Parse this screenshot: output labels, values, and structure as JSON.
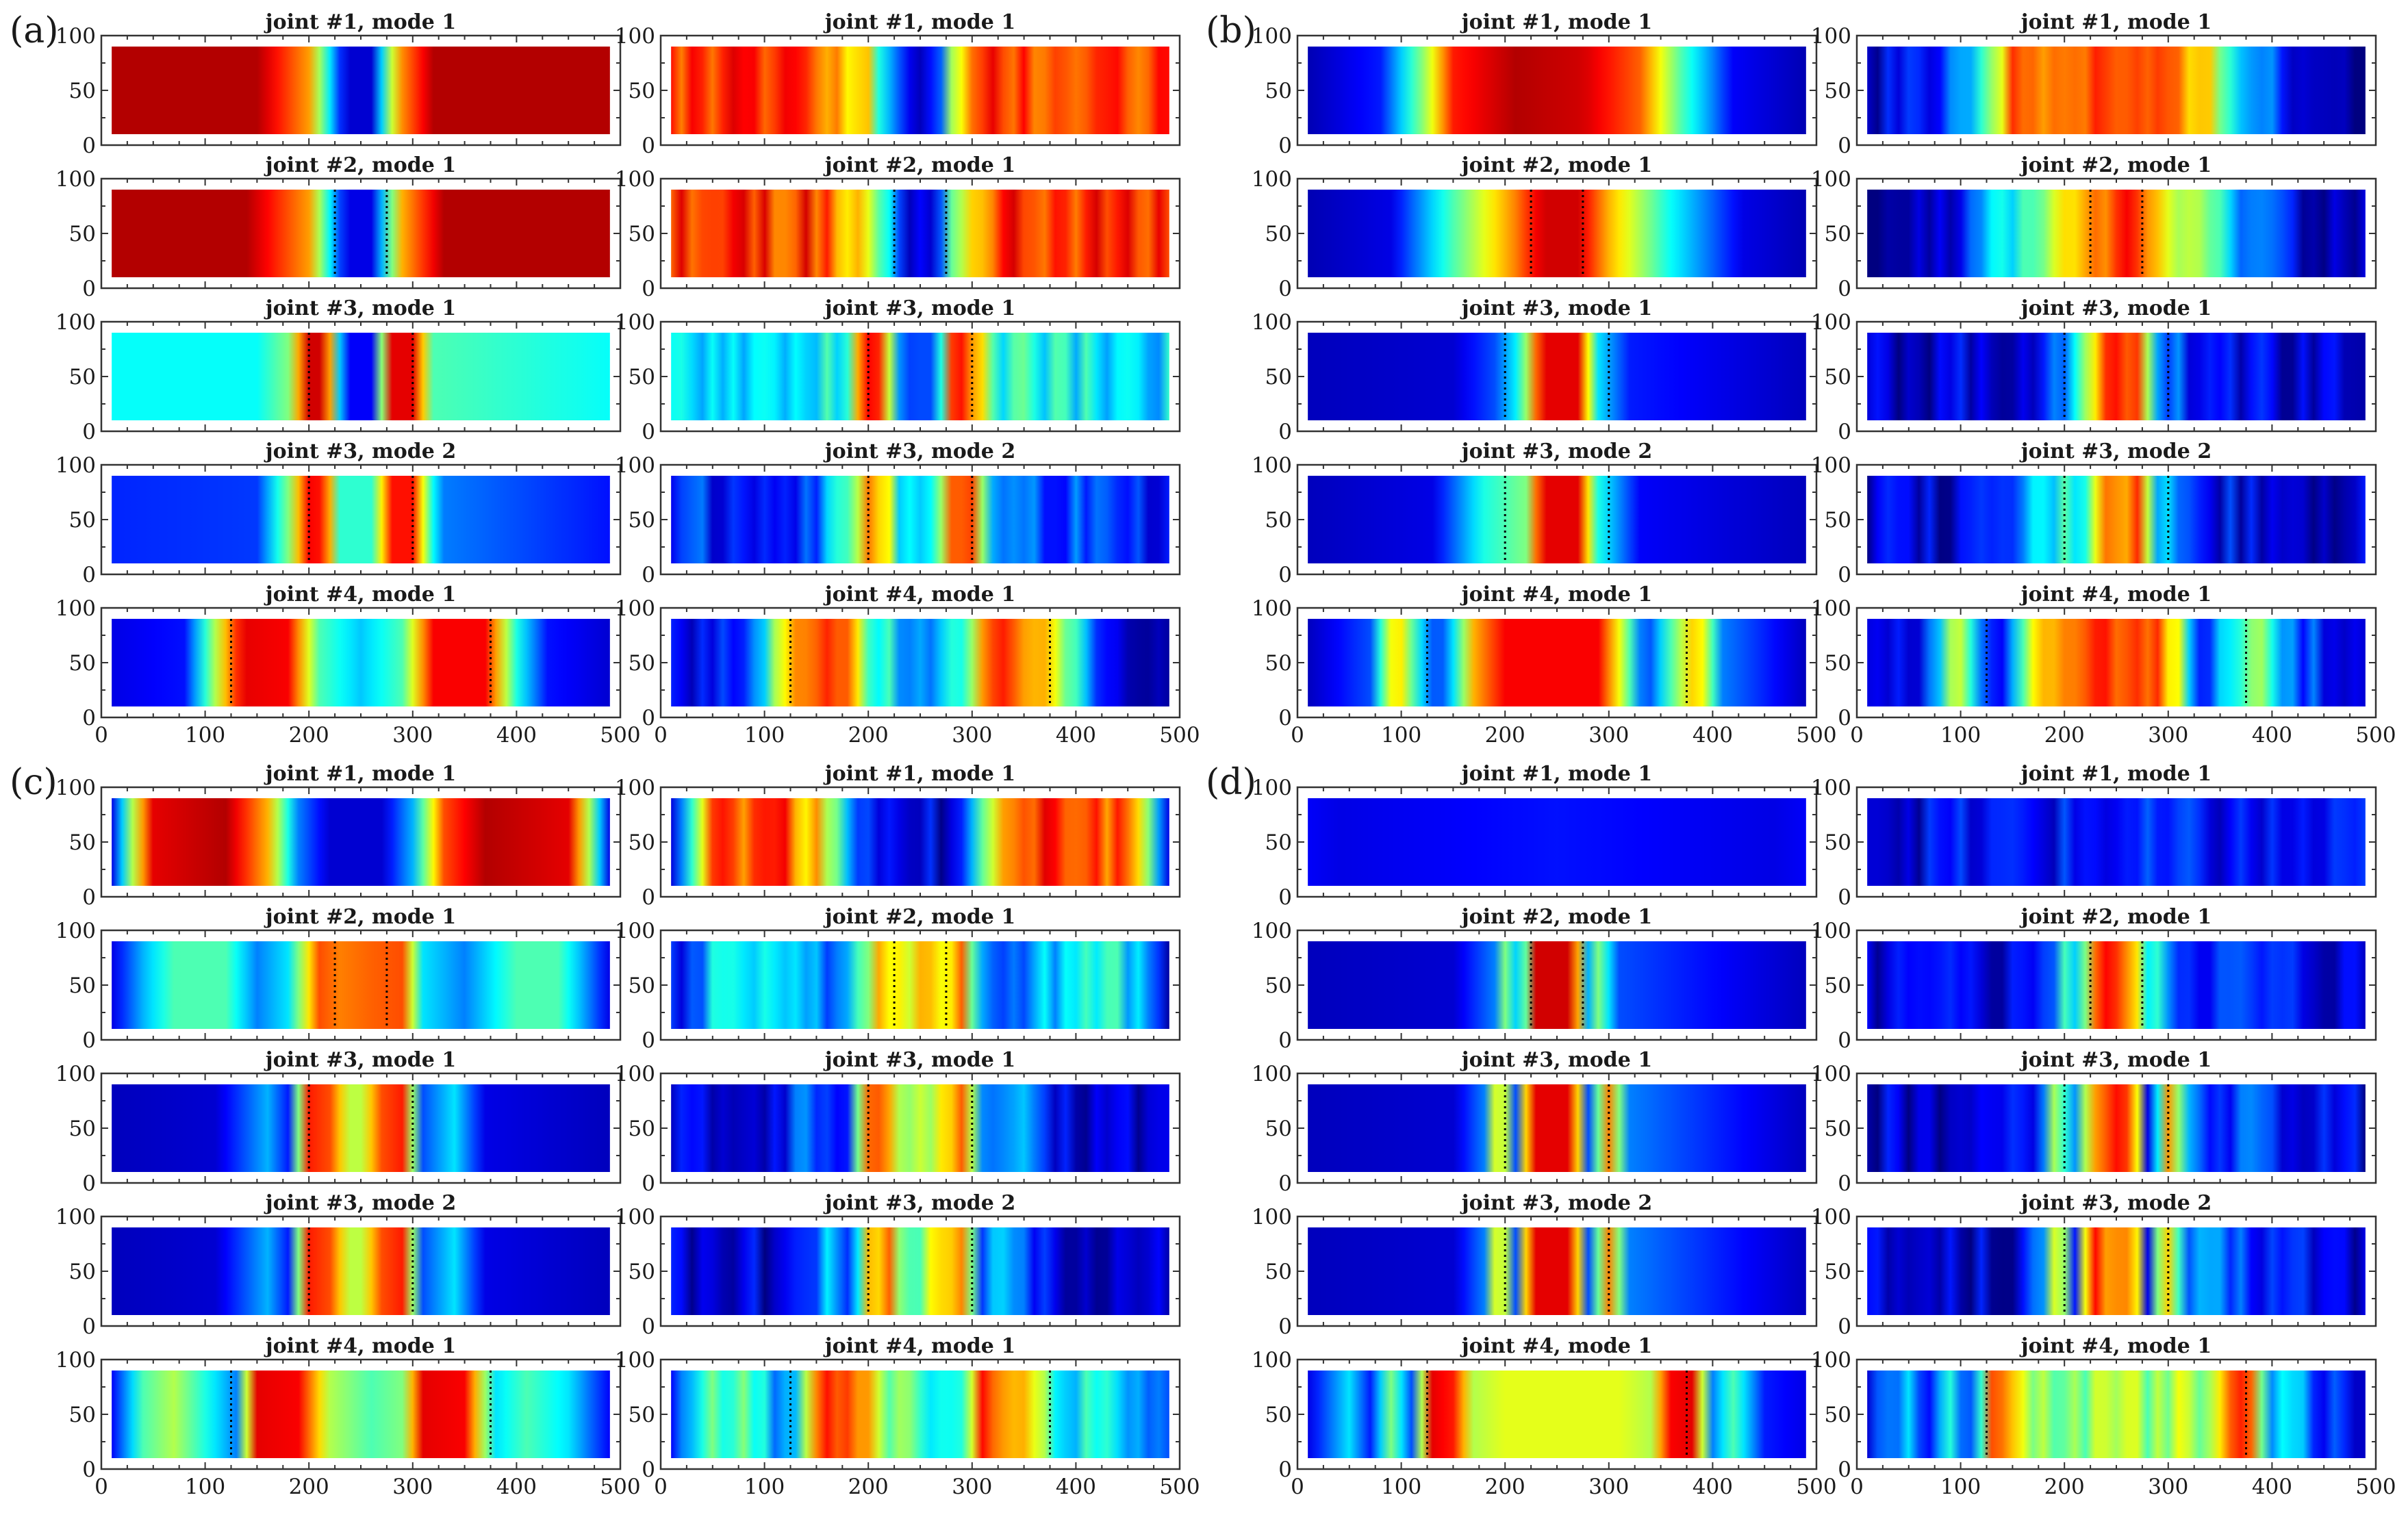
{
  "figure": {
    "panels": [
      "(a)",
      "(b)",
      "(c)",
      "(d)"
    ]
  },
  "chart_data": {
    "type": "heatmap",
    "colormap": "jet",
    "x_range": [
      0,
      500
    ],
    "y_range": [
      0,
      100
    ],
    "x_ticks": [
      0,
      100,
      200,
      300,
      400,
      500
    ],
    "y_ticks": [
      0,
      50,
      100
    ],
    "grid": false,
    "groups": [
      {
        "label": "(a)",
        "rows": [
          {
            "title_left": "joint #1, mode 1",
            "title_right": "joint #1, mode 1",
            "joint_lines_left": [],
            "joint_lines_right": []
          },
          {
            "title_left": "joint #2, mode 1",
            "title_right": "joint #2, mode 1",
            "joint_lines_left": [
              225,
              275
            ],
            "joint_lines_right": [
              225,
              275
            ]
          },
          {
            "title_left": "joint #3, mode 1",
            "title_right": "joint #3, mode 1",
            "joint_lines_left": [
              200,
              300
            ],
            "joint_lines_right": [
              200,
              300
            ]
          },
          {
            "title_left": "joint #3, mode 2",
            "title_right": "joint #3, mode 2",
            "joint_lines_left": [
              200,
              300
            ],
            "joint_lines_right": [
              200,
              300
            ]
          },
          {
            "title_left": "joint #4, mode 1",
            "title_right": "joint #4, mode 1",
            "joint_lines_left": [
              125,
              375
            ],
            "joint_lines_right": [
              125,
              375
            ]
          }
        ]
      },
      {
        "label": "(b)",
        "rows": [
          {
            "title_left": "joint #1, mode 1",
            "title_right": "joint #1, mode 1",
            "joint_lines_left": [],
            "joint_lines_right": []
          },
          {
            "title_left": "joint #2, mode 1",
            "title_right": "joint #2, mode 1",
            "joint_lines_left": [
              225,
              275
            ],
            "joint_lines_right": [
              225,
              275
            ]
          },
          {
            "title_left": "joint #3, mode 1",
            "title_right": "joint #3, mode 1",
            "joint_lines_left": [
              200,
              300
            ],
            "joint_lines_right": [
              200,
              300
            ]
          },
          {
            "title_left": "joint #3, mode 2",
            "title_right": "joint #3, mode 2",
            "joint_lines_left": [
              200,
              300
            ],
            "joint_lines_right": [
              200,
              300
            ]
          },
          {
            "title_left": "joint #4, mode 1",
            "title_right": "joint #4, mode 1",
            "joint_lines_left": [
              125,
              375
            ],
            "joint_lines_right": [
              125,
              375
            ]
          }
        ]
      },
      {
        "label": "(c)",
        "rows": [
          {
            "title_left": "joint #1, mode 1",
            "title_right": "joint #1, mode 1",
            "joint_lines_left": [],
            "joint_lines_right": []
          },
          {
            "title_left": "joint #2, mode 1",
            "title_right": "joint #2, mode 1",
            "joint_lines_left": [
              225,
              275
            ],
            "joint_lines_right": [
              225,
              275
            ]
          },
          {
            "title_left": "joint #3, mode 1",
            "title_right": "joint #3, mode 1",
            "joint_lines_left": [
              200,
              300
            ],
            "joint_lines_right": [
              200,
              300
            ]
          },
          {
            "title_left": "joint #3, mode 2",
            "title_right": "joint #3, mode 2",
            "joint_lines_left": [
              200,
              300
            ],
            "joint_lines_right": [
              200,
              300
            ]
          },
          {
            "title_left": "joint #4, mode 1",
            "title_right": "joint #4, mode 1",
            "joint_lines_left": [
              125,
              375
            ],
            "joint_lines_right": [
              125,
              375
            ]
          }
        ]
      },
      {
        "label": "(d)",
        "rows": [
          {
            "title_left": "joint #1, mode 1",
            "title_right": "joint #1, mode 1",
            "joint_lines_left": [],
            "joint_lines_right": []
          },
          {
            "title_left": "joint #2, mode 1",
            "title_right": "joint #2, mode 1",
            "joint_lines_left": [
              225,
              275
            ],
            "joint_lines_right": [
              225,
              275
            ]
          },
          {
            "title_left": "joint #3, mode 1",
            "title_right": "joint #3, mode 1",
            "joint_lines_left": [
              200,
              300
            ],
            "joint_lines_right": [
              200,
              300
            ]
          },
          {
            "title_left": "joint #3, mode 2",
            "title_right": "joint #3, mode 2",
            "joint_lines_left": [
              200,
              300
            ],
            "joint_lines_right": [
              200,
              300
            ]
          },
          {
            "title_left": "joint #4, mode 1",
            "title_right": "joint #4, mode 1",
            "joint_lines_left": [
              125,
              375
            ],
            "joint_lines_right": [
              125,
              375
            ]
          }
        ]
      }
    ]
  }
}
